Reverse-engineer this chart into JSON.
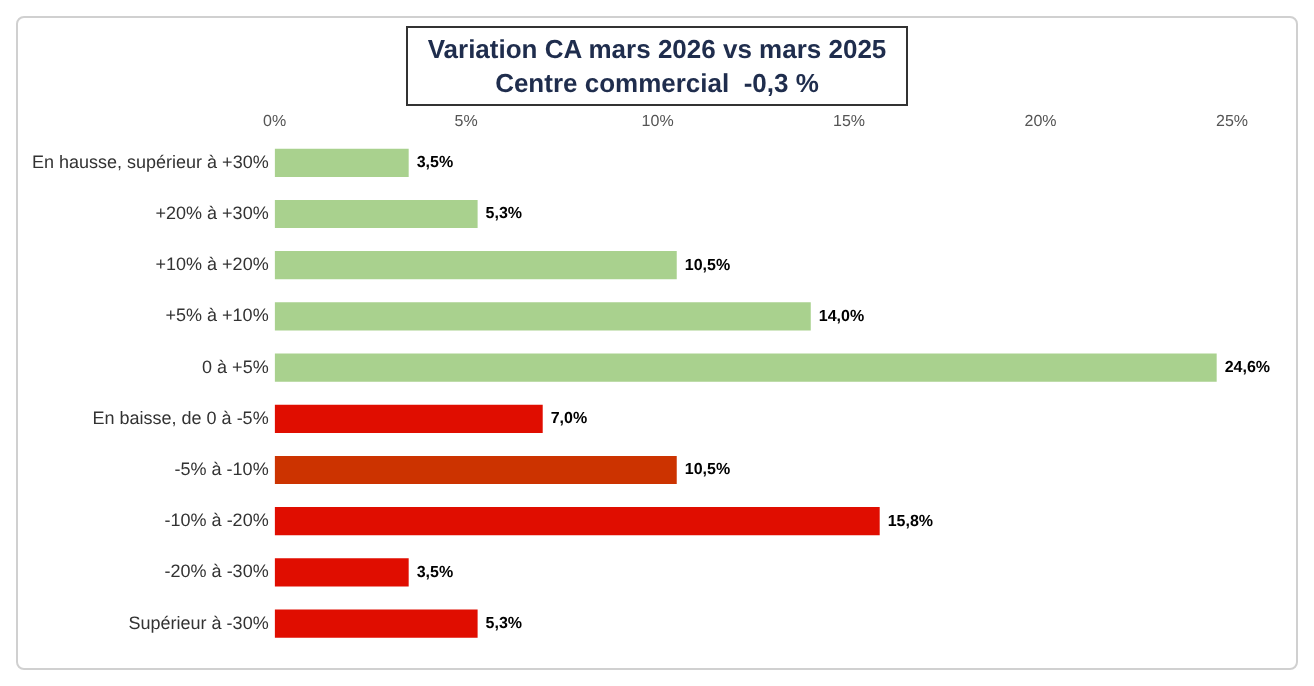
{
  "chart_data": {
    "type": "bar",
    "orientation": "horizontal",
    "title": "Variation CA mars 2026 vs mars 2025",
    "subtitle": "Centre commercial  -0,3 %",
    "categories": [
      "En hausse, supérieur à +30%",
      "+20% à +30%",
      "+10% à +20%",
      "+5% à +10%",
      "0 à +5%",
      "En baisse, de 0 à -5%",
      "-5% à -10%",
      "-10% à -20%",
      "-20% à -30%",
      "Supérieur à -30%"
    ],
    "values": [
      3.5,
      5.3,
      10.5,
      14.0,
      24.6,
      7.0,
      10.5,
      15.8,
      3.5,
      5.3
    ],
    "value_labels": [
      "3,5%",
      "5,3%",
      "10,5%",
      "14,0%",
      "24,6%",
      "7,0%",
      "10,5%",
      "15,8%",
      "3,5%",
      "5,3%"
    ],
    "colors": [
      "#a9d18e",
      "#a9d18e",
      "#a9d18e",
      "#a9d18e",
      "#a9d18e",
      "#e00d00",
      "#cc3300",
      "#e00d00",
      "#e00d00",
      "#e00d00"
    ],
    "xlim": [
      0,
      25
    ],
    "xticks": [
      {
        "value": 0,
        "label": "0%"
      },
      {
        "value": 5,
        "label": "5%"
      },
      {
        "value": 10,
        "label": "10%"
      },
      {
        "value": 15,
        "label": "15%"
      },
      {
        "value": 20,
        "label": "20%"
      },
      {
        "value": 25,
        "label": "25%"
      }
    ],
    "grid": false,
    "legend": false
  }
}
